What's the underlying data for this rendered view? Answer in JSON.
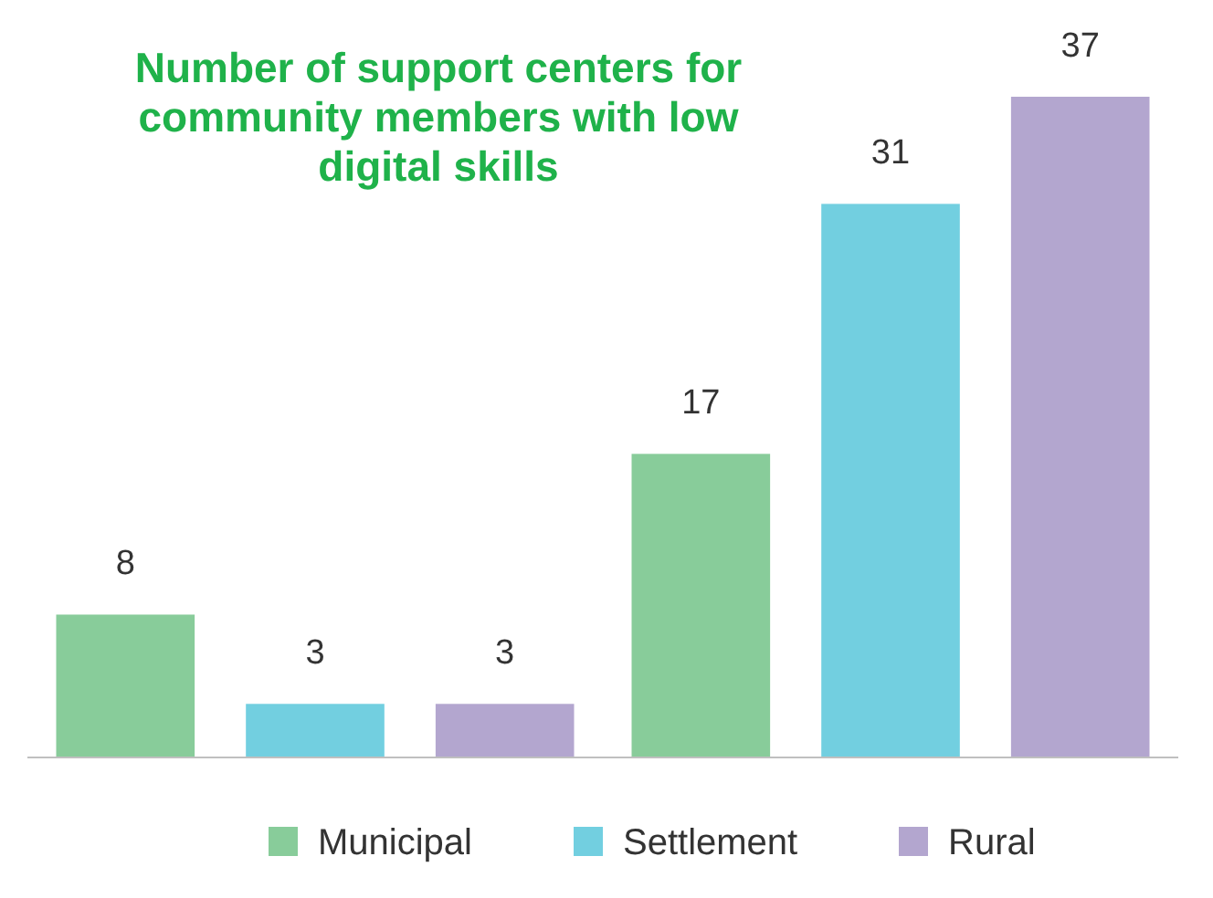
{
  "chart_data": {
    "type": "bar",
    "title": "Number of support centers for community members with low digital skills",
    "categories": [
      null,
      null
    ],
    "series": [
      {
        "name": "Municipal",
        "color": "#88cc9a",
        "values": [
          8,
          17
        ]
      },
      {
        "name": "Settlement",
        "color": "#72cfe0",
        "values": [
          3,
          31
        ]
      },
      {
        "name": "Rural",
        "color": "#b3a6cf",
        "values": [
          3,
          37
        ]
      }
    ],
    "data_labels": true,
    "legend": "bottom"
  }
}
